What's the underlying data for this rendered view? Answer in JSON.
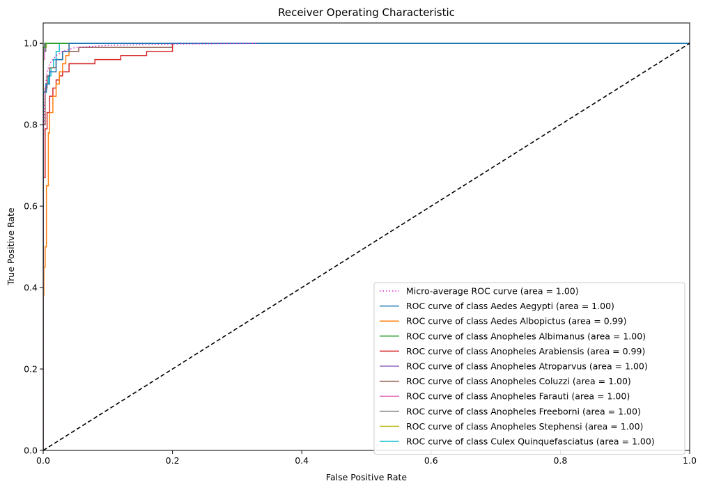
{
  "chart_data": {
    "type": "line",
    "title": "Receiver Operating Characteristic",
    "xlabel": "False Positive Rate",
    "ylabel": "True Positive Rate",
    "xlim": [
      0.0,
      1.0
    ],
    "ylim": [
      0.0,
      1.05
    ],
    "xticks": [
      "0.0",
      "0.2",
      "0.4",
      "0.6",
      "0.8",
      "1.0"
    ],
    "yticks": [
      "0.0",
      "0.2",
      "0.4",
      "0.6",
      "0.8",
      "1.0"
    ],
    "grid": false,
    "legend_placement": "lower-right",
    "diagonal": {
      "x": [
        0.0,
        1.0
      ],
      "y": [
        0.0,
        1.0
      ],
      "color": "#000000",
      "style": "dashed"
    },
    "series": [
      {
        "name": "Micro-average ROC curve (area = 1.00)",
        "color": "#e020c8",
        "style": "dotted",
        "x": [
          0.0,
          0.0,
          0.002,
          0.004,
          0.006,
          0.01,
          0.015,
          0.02,
          0.03,
          0.05,
          0.1,
          0.2,
          0.33
        ],
        "y": [
          0.0,
          0.75,
          0.85,
          0.9,
          0.93,
          0.95,
          0.96,
          0.97,
          0.98,
          0.99,
          0.995,
          0.998,
          1.0
        ]
      },
      {
        "name": "ROC curve of class Aedes Aegypti (area = 1.00)",
        "color": "#1f77b4",
        "style": "solid",
        "x": [
          0.0,
          0.0,
          0.005,
          0.005,
          0.01,
          0.01,
          0.02,
          0.02,
          0.03,
          0.03,
          0.04,
          0.04,
          1.0
        ],
        "y": [
          0.0,
          0.88,
          0.88,
          0.9,
          0.9,
          0.93,
          0.93,
          0.96,
          0.96,
          0.98,
          0.98,
          1.0,
          1.0
        ]
      },
      {
        "name": "ROC curve of class Aedes Albopictus (area = 0.99)",
        "color": "#ff7f0e",
        "style": "solid",
        "x": [
          0.0,
          0.0,
          0.001,
          0.001,
          0.003,
          0.003,
          0.005,
          0.005,
          0.008,
          0.008,
          0.01,
          0.01,
          0.015,
          0.015,
          0.02,
          0.02,
          0.025,
          0.025,
          0.03,
          0.03,
          0.035,
          0.035,
          0.04,
          0.04,
          1.0
        ],
        "y": [
          0.0,
          0.38,
          0.38,
          0.45,
          0.45,
          0.5,
          0.5,
          0.65,
          0.65,
          0.78,
          0.78,
          0.83,
          0.83,
          0.87,
          0.87,
          0.9,
          0.9,
          0.93,
          0.93,
          0.95,
          0.95,
          0.97,
          0.97,
          1.0,
          1.0
        ]
      },
      {
        "name": "ROC curve of class Anopheles Albimanus (area = 1.00)",
        "color": "#2ca02c",
        "style": "solid",
        "x": [
          0.0,
          0.0,
          0.003,
          0.003,
          1.0
        ],
        "y": [
          0.0,
          0.99,
          0.99,
          1.0,
          1.0
        ]
      },
      {
        "name": "ROC curve of class Anopheles Arabiensis (area = 0.99)",
        "color": "#d62728",
        "style": "solid",
        "x": [
          0.0,
          0.0,
          0.003,
          0.003,
          0.006,
          0.006,
          0.01,
          0.01,
          0.015,
          0.015,
          0.02,
          0.02,
          0.025,
          0.025,
          0.03,
          0.03,
          0.04,
          0.04,
          0.08,
          0.08,
          0.12,
          0.12,
          0.16,
          0.16,
          0.2,
          0.2,
          1.0
        ],
        "y": [
          0.0,
          0.67,
          0.67,
          0.79,
          0.79,
          0.83,
          0.83,
          0.87,
          0.87,
          0.89,
          0.89,
          0.91,
          0.91,
          0.92,
          0.92,
          0.93,
          0.93,
          0.95,
          0.95,
          0.96,
          0.96,
          0.97,
          0.97,
          0.98,
          0.98,
          1.0,
          1.0
        ]
      },
      {
        "name": "ROC curve of class Anopheles Atroparvus (area = 1.00)",
        "color": "#9467bd",
        "style": "solid",
        "x": [
          0.0,
          0.0,
          0.002,
          0.002,
          1.0
        ],
        "y": [
          0.0,
          0.98,
          0.98,
          1.0,
          1.0
        ]
      },
      {
        "name": "ROC curve of class Anopheles Coluzzi (area = 1.00)",
        "color": "#8c564b",
        "style": "solid",
        "x": [
          0.0,
          0.0,
          0.003,
          0.003,
          0.006,
          0.006,
          0.01,
          0.01,
          0.02,
          0.02,
          0.03,
          0.03,
          0.055,
          0.055,
          0.2,
          0.2,
          1.0
        ],
        "y": [
          0.0,
          0.8,
          0.8,
          0.89,
          0.89,
          0.92,
          0.92,
          0.94,
          0.94,
          0.96,
          0.96,
          0.98,
          0.98,
          0.99,
          0.99,
          1.0,
          1.0
        ]
      },
      {
        "name": "ROC curve of class Anopheles Farauti (area = 1.00)",
        "color": "#e377c2",
        "style": "solid",
        "x": [
          0.0,
          0.0,
          0.002,
          0.002,
          1.0
        ],
        "y": [
          0.0,
          0.96,
          0.96,
          1.0,
          1.0
        ]
      },
      {
        "name": "ROC curve of class Anopheles Freeborni (area = 1.00)",
        "color": "#7f7f7f",
        "style": "solid",
        "x": [
          0.0,
          0.0,
          0.004,
          0.004,
          1.0
        ],
        "y": [
          0.0,
          0.98,
          0.98,
          1.0,
          1.0
        ]
      },
      {
        "name": "ROC curve of class Anopheles Stephensi (area = 1.00)",
        "color": "#bcbd22",
        "style": "solid",
        "x": [
          0.0,
          0.0,
          0.005,
          0.005,
          1.0
        ],
        "y": [
          0.0,
          0.99,
          0.99,
          1.0,
          1.0
        ]
      },
      {
        "name": "ROC curve of class Culex Quinquefasciatus (area = 1.00)",
        "color": "#17becf",
        "style": "solid",
        "x": [
          0.0,
          0.0,
          0.004,
          0.004,
          0.008,
          0.008,
          0.012,
          0.012,
          0.016,
          0.016,
          0.02,
          0.02,
          0.025,
          0.025,
          1.0
        ],
        "y": [
          0.0,
          0.88,
          0.88,
          0.9,
          0.9,
          0.92,
          0.92,
          0.94,
          0.94,
          0.96,
          0.96,
          0.98,
          0.98,
          1.0,
          1.0
        ]
      }
    ]
  }
}
